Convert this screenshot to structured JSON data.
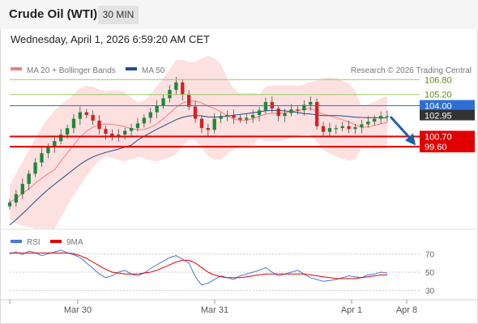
{
  "header": {
    "title": "Crude Oil (WTI)",
    "timeframe": "30 MIN",
    "timestamp": "Wednesday, April 1, 2026 6:59:20 AM CET"
  },
  "legend": {
    "bollinger": "MA 20 + Bollinger Bands",
    "ma50": "MA 50",
    "copyright": "Research © 2026 Trading Central",
    "rsi": "RSI",
    "rsi_ma": "9MA"
  },
  "colors": {
    "resistance_line": "#2e6fd6",
    "support_line": "#e00000",
    "target_line": "#9ccc65",
    "bollinger_fill": "#fde0e0",
    "bollinger_ma": "#f08080",
    "ma50": "#1f4e8c",
    "candle_up": "#1a8a3a",
    "candle_down": "#d62020",
    "arrow": "#1f5fa8",
    "rsi_line": "#4a78d0",
    "rsi_ma_line": "#e00000"
  },
  "chart_data": [
    {
      "type": "candlestick",
      "y_unit": "USD",
      "levels": [
        {
          "label": "106.80",
          "value": 106.8,
          "kind": "target"
        },
        {
          "label": "105.20",
          "value": 105.2,
          "kind": "target"
        },
        {
          "label": "104.00",
          "value": 104.0,
          "kind": "resistance"
        },
        {
          "label": "102.95",
          "value": 102.95,
          "kind": "last-price"
        },
        {
          "label": "100.70",
          "value": 100.7,
          "kind": "support"
        },
        {
          "label": "99.60",
          "value": 99.6,
          "kind": "support"
        }
      ],
      "x_ticks": [
        "Mar 30",
        "Mar 31",
        "Apr 1",
        "Apr 8"
      ],
      "close_path": [
        93.6,
        94.5,
        95.6,
        96.7,
        97.9,
        98.9,
        99.6,
        100.2,
        100.9,
        101.6,
        102.6,
        103.3,
        103.0,
        102.4,
        101.5,
        101.0,
        100.6,
        100.9,
        101.3,
        101.6,
        102.1,
        102.7,
        103.3,
        104.0,
        104.8,
        105.7,
        106.5,
        105.2,
        103.9,
        102.6,
        101.6,
        101.4,
        102.6,
        102.9,
        103.0,
        102.7,
        102.5,
        102.7,
        103.0,
        103.5,
        104.4,
        103.7,
        102.9,
        103.2,
        103.6,
        103.5,
        104.1,
        104.4,
        101.8,
        101.2,
        101.6,
        101.6,
        101.8,
        101.5,
        101.7,
        102.0,
        102.3,
        102.6,
        102.9,
        102.9
      ],
      "trend": "bearish",
      "forecast_arrow": "down toward 100.70",
      "bollinger_ma20": true,
      "ma50": true
    },
    {
      "type": "line",
      "name": "RSI",
      "y_ticks": [
        70,
        50,
        30
      ],
      "ylim": [
        20,
        80
      ],
      "rsi": [
        70,
        72,
        69,
        73,
        71,
        68,
        70,
        72,
        74,
        71,
        69,
        66,
        60,
        54,
        48,
        44,
        46,
        50,
        52,
        48,
        46,
        49,
        54,
        58,
        62,
        66,
        68,
        64,
        60,
        45,
        36,
        38,
        42,
        46,
        44,
        42,
        46,
        48,
        50,
        52,
        55,
        50,
        46,
        48,
        50,
        52,
        48,
        44,
        42,
        40,
        41,
        42,
        44,
        46,
        45,
        44,
        47,
        48,
        50,
        49
      ],
      "rsi_ma": [
        71,
        71,
        71,
        71,
        71,
        71,
        71,
        71,
        71,
        71,
        70,
        68,
        65,
        61,
        57,
        53,
        50,
        49,
        48,
        48,
        48,
        49,
        50,
        52,
        55,
        58,
        61,
        63,
        63,
        60,
        55,
        50,
        47,
        45,
        44,
        44,
        44,
        45,
        46,
        47,
        48,
        48,
        48,
        48,
        48,
        48,
        48,
        47,
        46,
        45,
        44,
        43,
        43,
        43,
        43,
        44,
        45,
        46,
        47,
        47
      ]
    }
  ]
}
